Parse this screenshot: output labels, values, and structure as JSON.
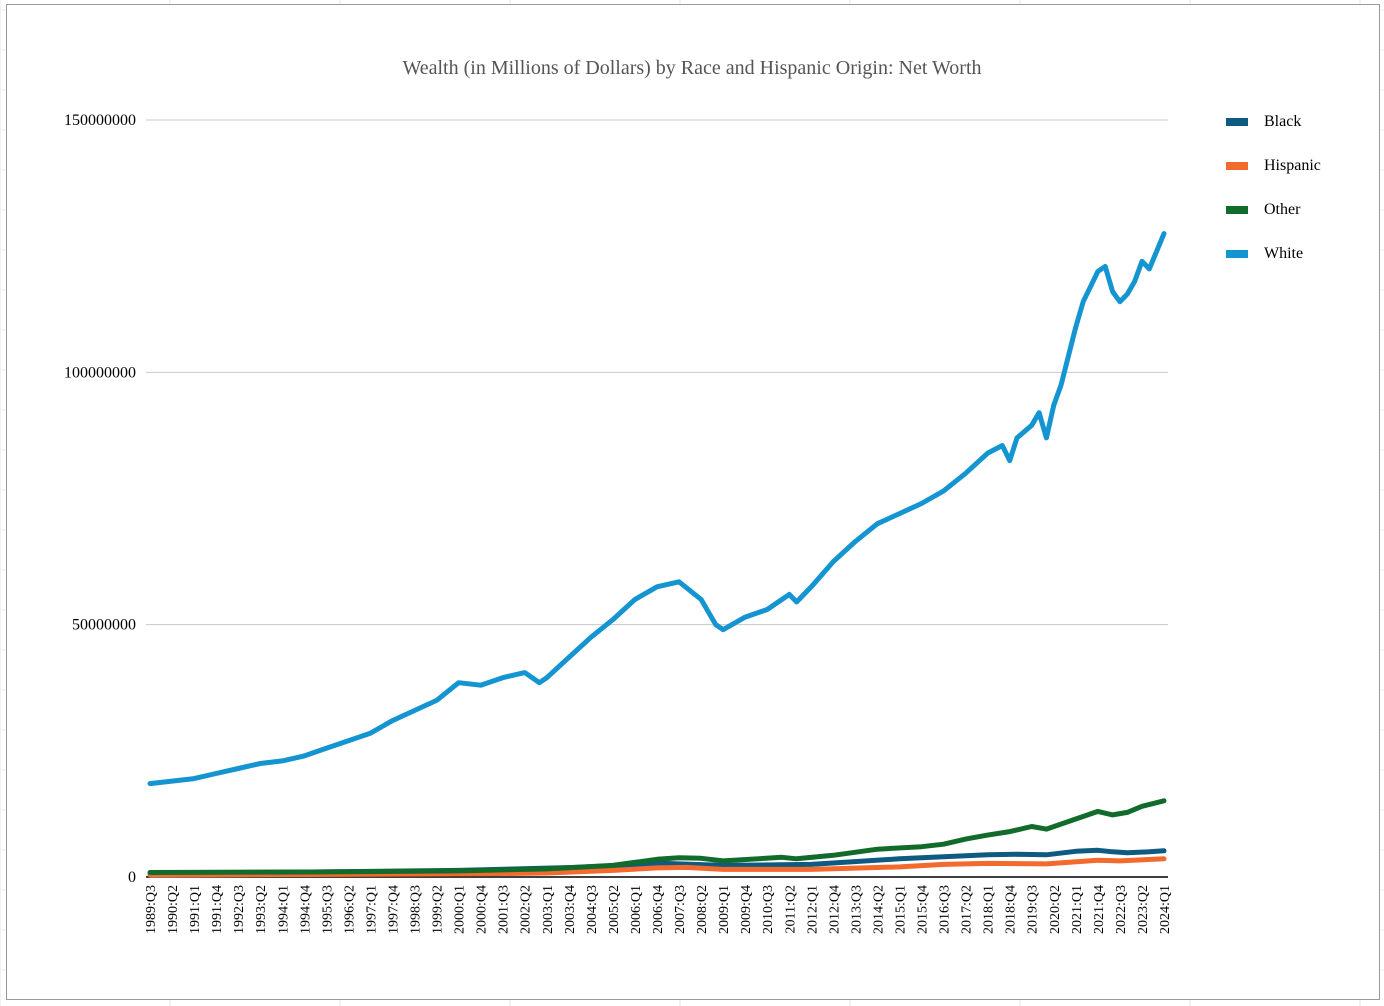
{
  "chart_data": {
    "type": "line",
    "title": "Wealth (in Millions of Dollars) by Race and Hispanic Origin: Net Worth",
    "xlabel": "",
    "ylabel": "",
    "ylim": [
      0,
      150000000
    ],
    "yticks": [
      0,
      50000000,
      100000000,
      150000000
    ],
    "ytick_labels": [
      "0",
      "50000000",
      "100000000",
      "150000000"
    ],
    "x_start": "1989:Q3",
    "x_end": "2024:Q1",
    "xtick_labels": [
      "1989:Q3",
      "1990:Q2",
      "1991:Q1",
      "1991:Q4",
      "1992:Q3",
      "1993:Q2",
      "1994:Q1",
      "1994:Q4",
      "1995:Q3",
      "1996:Q2",
      "1997:Q1",
      "1997:Q4",
      "1998:Q3",
      "1999:Q2",
      "2000:Q1",
      "2000:Q4",
      "2001:Q3",
      "2002:Q2",
      "2003:Q1",
      "2003:Q4",
      "2004:Q3",
      "2005:Q2",
      "2006:Q1",
      "2006:Q4",
      "2007:Q3",
      "2008:Q2",
      "2009:Q1",
      "2009:Q4",
      "2010:Q3",
      "2011:Q2",
      "2012:Q1",
      "2012:Q4",
      "2013:Q3",
      "2014:Q2",
      "2015:Q1",
      "2015:Q4",
      "2016:Q3",
      "2017:Q2",
      "2018:Q1",
      "2018:Q4",
      "2019:Q3",
      "2020:Q2",
      "2021:Q1",
      "2021:Q4",
      "2022:Q3",
      "2023:Q2",
      "2024:Q1"
    ],
    "grid": true,
    "legend_position": "right",
    "series": [
      {
        "name": "Black",
        "color": "#0e5a80",
        "points": [
          [
            "1989:Q3",
            800000
          ],
          [
            "1995:Q1",
            1000000
          ],
          [
            "2000:Q1",
            1300000
          ],
          [
            "2004:Q1",
            1900000
          ],
          [
            "2007:Q1",
            2700000
          ],
          [
            "2009:Q1",
            2300000
          ],
          [
            "2012:Q1",
            2500000
          ],
          [
            "2015:Q1",
            3600000
          ],
          [
            "2018:Q1",
            4400000
          ],
          [
            "2019:Q1",
            4500000
          ],
          [
            "2020:Q1",
            4400000
          ],
          [
            "2021:Q1",
            5100000
          ],
          [
            "2021:Q4",
            5300000
          ],
          [
            "2022:Q2",
            5000000
          ],
          [
            "2022:Q4",
            4800000
          ],
          [
            "2023:Q3",
            5000000
          ],
          [
            "2024:Q1",
            5200000
          ]
        ]
      },
      {
        "name": "Hispanic",
        "color": "#f26a2e",
        "points": [
          [
            "1989:Q3",
            400000
          ],
          [
            "1995:Q1",
            500000
          ],
          [
            "2000:Q1",
            600000
          ],
          [
            "2003:Q1",
            800000
          ],
          [
            "2005:Q2",
            1300000
          ],
          [
            "2006:Q4",
            1800000
          ],
          [
            "2007:Q4",
            1900000
          ],
          [
            "2009:Q1",
            1500000
          ],
          [
            "2012:Q1",
            1500000
          ],
          [
            "2015:Q1",
            2000000
          ],
          [
            "2016:Q3",
            2500000
          ],
          [
            "2018:Q1",
            2700000
          ],
          [
            "2020:Q1",
            2600000
          ],
          [
            "2021:Q4",
            3300000
          ],
          [
            "2022:Q3",
            3200000
          ],
          [
            "2024:Q1",
            3600000
          ]
        ]
      },
      {
        "name": "Other",
        "color": "#116b2a",
        "points": [
          [
            "1989:Q3",
            900000
          ],
          [
            "1995:Q1",
            1000000
          ],
          [
            "2000:Q1",
            1200000
          ],
          [
            "2003:Q1",
            1600000
          ],
          [
            "2005:Q2",
            2300000
          ],
          [
            "2006:Q4",
            3500000
          ],
          [
            "2007:Q3",
            3800000
          ],
          [
            "2008:Q2",
            3700000
          ],
          [
            "2009:Q1",
            3200000
          ],
          [
            "2011:Q1",
            3900000
          ],
          [
            "2011:Q3",
            3600000
          ],
          [
            "2012:Q4",
            4300000
          ],
          [
            "2014:Q2",
            5500000
          ],
          [
            "2015:Q4",
            6000000
          ],
          [
            "2016:Q3",
            6500000
          ],
          [
            "2017:Q2",
            7500000
          ],
          [
            "2018:Q1",
            8300000
          ],
          [
            "2018:Q4",
            9000000
          ],
          [
            "2019:Q3",
            10000000
          ],
          [
            "2020:Q1",
            9500000
          ],
          [
            "2020:Q4",
            11000000
          ],
          [
            "2021:Q4",
            13000000
          ],
          [
            "2022:Q2",
            12300000
          ],
          [
            "2022:Q4",
            12800000
          ],
          [
            "2023:Q2",
            14000000
          ],
          [
            "2024:Q1",
            15100000
          ]
        ]
      },
      {
        "name": "White",
        "color": "#1495d1",
        "points": [
          [
            "1989:Q3",
            18500000
          ],
          [
            "1990:Q2",
            19000000
          ],
          [
            "1991:Q1",
            19500000
          ],
          [
            "1991:Q4",
            20500000
          ],
          [
            "1992:Q3",
            21500000
          ],
          [
            "1993:Q2",
            22500000
          ],
          [
            "1994:Q1",
            23000000
          ],
          [
            "1994:Q4",
            24000000
          ],
          [
            "1995:Q3",
            25500000
          ],
          [
            "1996:Q2",
            27000000
          ],
          [
            "1997:Q1",
            28500000
          ],
          [
            "1997:Q4",
            31000000
          ],
          [
            "1998:Q3",
            33000000
          ],
          [
            "1999:Q2",
            35000000
          ],
          [
            "2000:Q1",
            38500000
          ],
          [
            "2000:Q4",
            38000000
          ],
          [
            "2001:Q3",
            39500000
          ],
          [
            "2002:Q2",
            40500000
          ],
          [
            "2002:Q4",
            38500000
          ],
          [
            "2003:Q1",
            39500000
          ],
          [
            "2003:Q4",
            43500000
          ],
          [
            "2004:Q3",
            47500000
          ],
          [
            "2005:Q2",
            51000000
          ],
          [
            "2006:Q1",
            55000000
          ],
          [
            "2006:Q4",
            57500000
          ],
          [
            "2007:Q3",
            58500000
          ],
          [
            "2008:Q2",
            55000000
          ],
          [
            "2008:Q4",
            50000000
          ],
          [
            "2009:Q1",
            49000000
          ],
          [
            "2009:Q4",
            51500000
          ],
          [
            "2010:Q3",
            53000000
          ],
          [
            "2011:Q2",
            56000000
          ],
          [
            "2011:Q3",
            54500000
          ],
          [
            "2012:Q1",
            57500000
          ],
          [
            "2012:Q4",
            62500000
          ],
          [
            "2013:Q3",
            66500000
          ],
          [
            "2014:Q2",
            70000000
          ],
          [
            "2015:Q1",
            72000000
          ],
          [
            "2015:Q4",
            74000000
          ],
          [
            "2016:Q3",
            76500000
          ],
          [
            "2017:Q2",
            80000000
          ],
          [
            "2018:Q1",
            84000000
          ],
          [
            "2018:Q3",
            85500000
          ],
          [
            "2018:Q4",
            82500000
          ],
          [
            "2019:Q1",
            87000000
          ],
          [
            "2019:Q3",
            89500000
          ],
          [
            "2019:Q4",
            92000000
          ],
          [
            "2020:Q1",
            87000000
          ],
          [
            "2020:Q2",
            93500000
          ],
          [
            "2020:Q3",
            97500000
          ],
          [
            "2021:Q1",
            109000000
          ],
          [
            "2021:Q2",
            114000000
          ],
          [
            "2021:Q4",
            120000000
          ],
          [
            "2022:Q1",
            121000000
          ],
          [
            "2022:Q2",
            116000000
          ],
          [
            "2022:Q3",
            114000000
          ],
          [
            "2022:Q4",
            115500000
          ],
          [
            "2023:Q1",
            118000000
          ],
          [
            "2023:Q2",
            122000000
          ],
          [
            "2023:Q3",
            120500000
          ],
          [
            "2024:Q1",
            127500000
          ]
        ]
      }
    ]
  }
}
